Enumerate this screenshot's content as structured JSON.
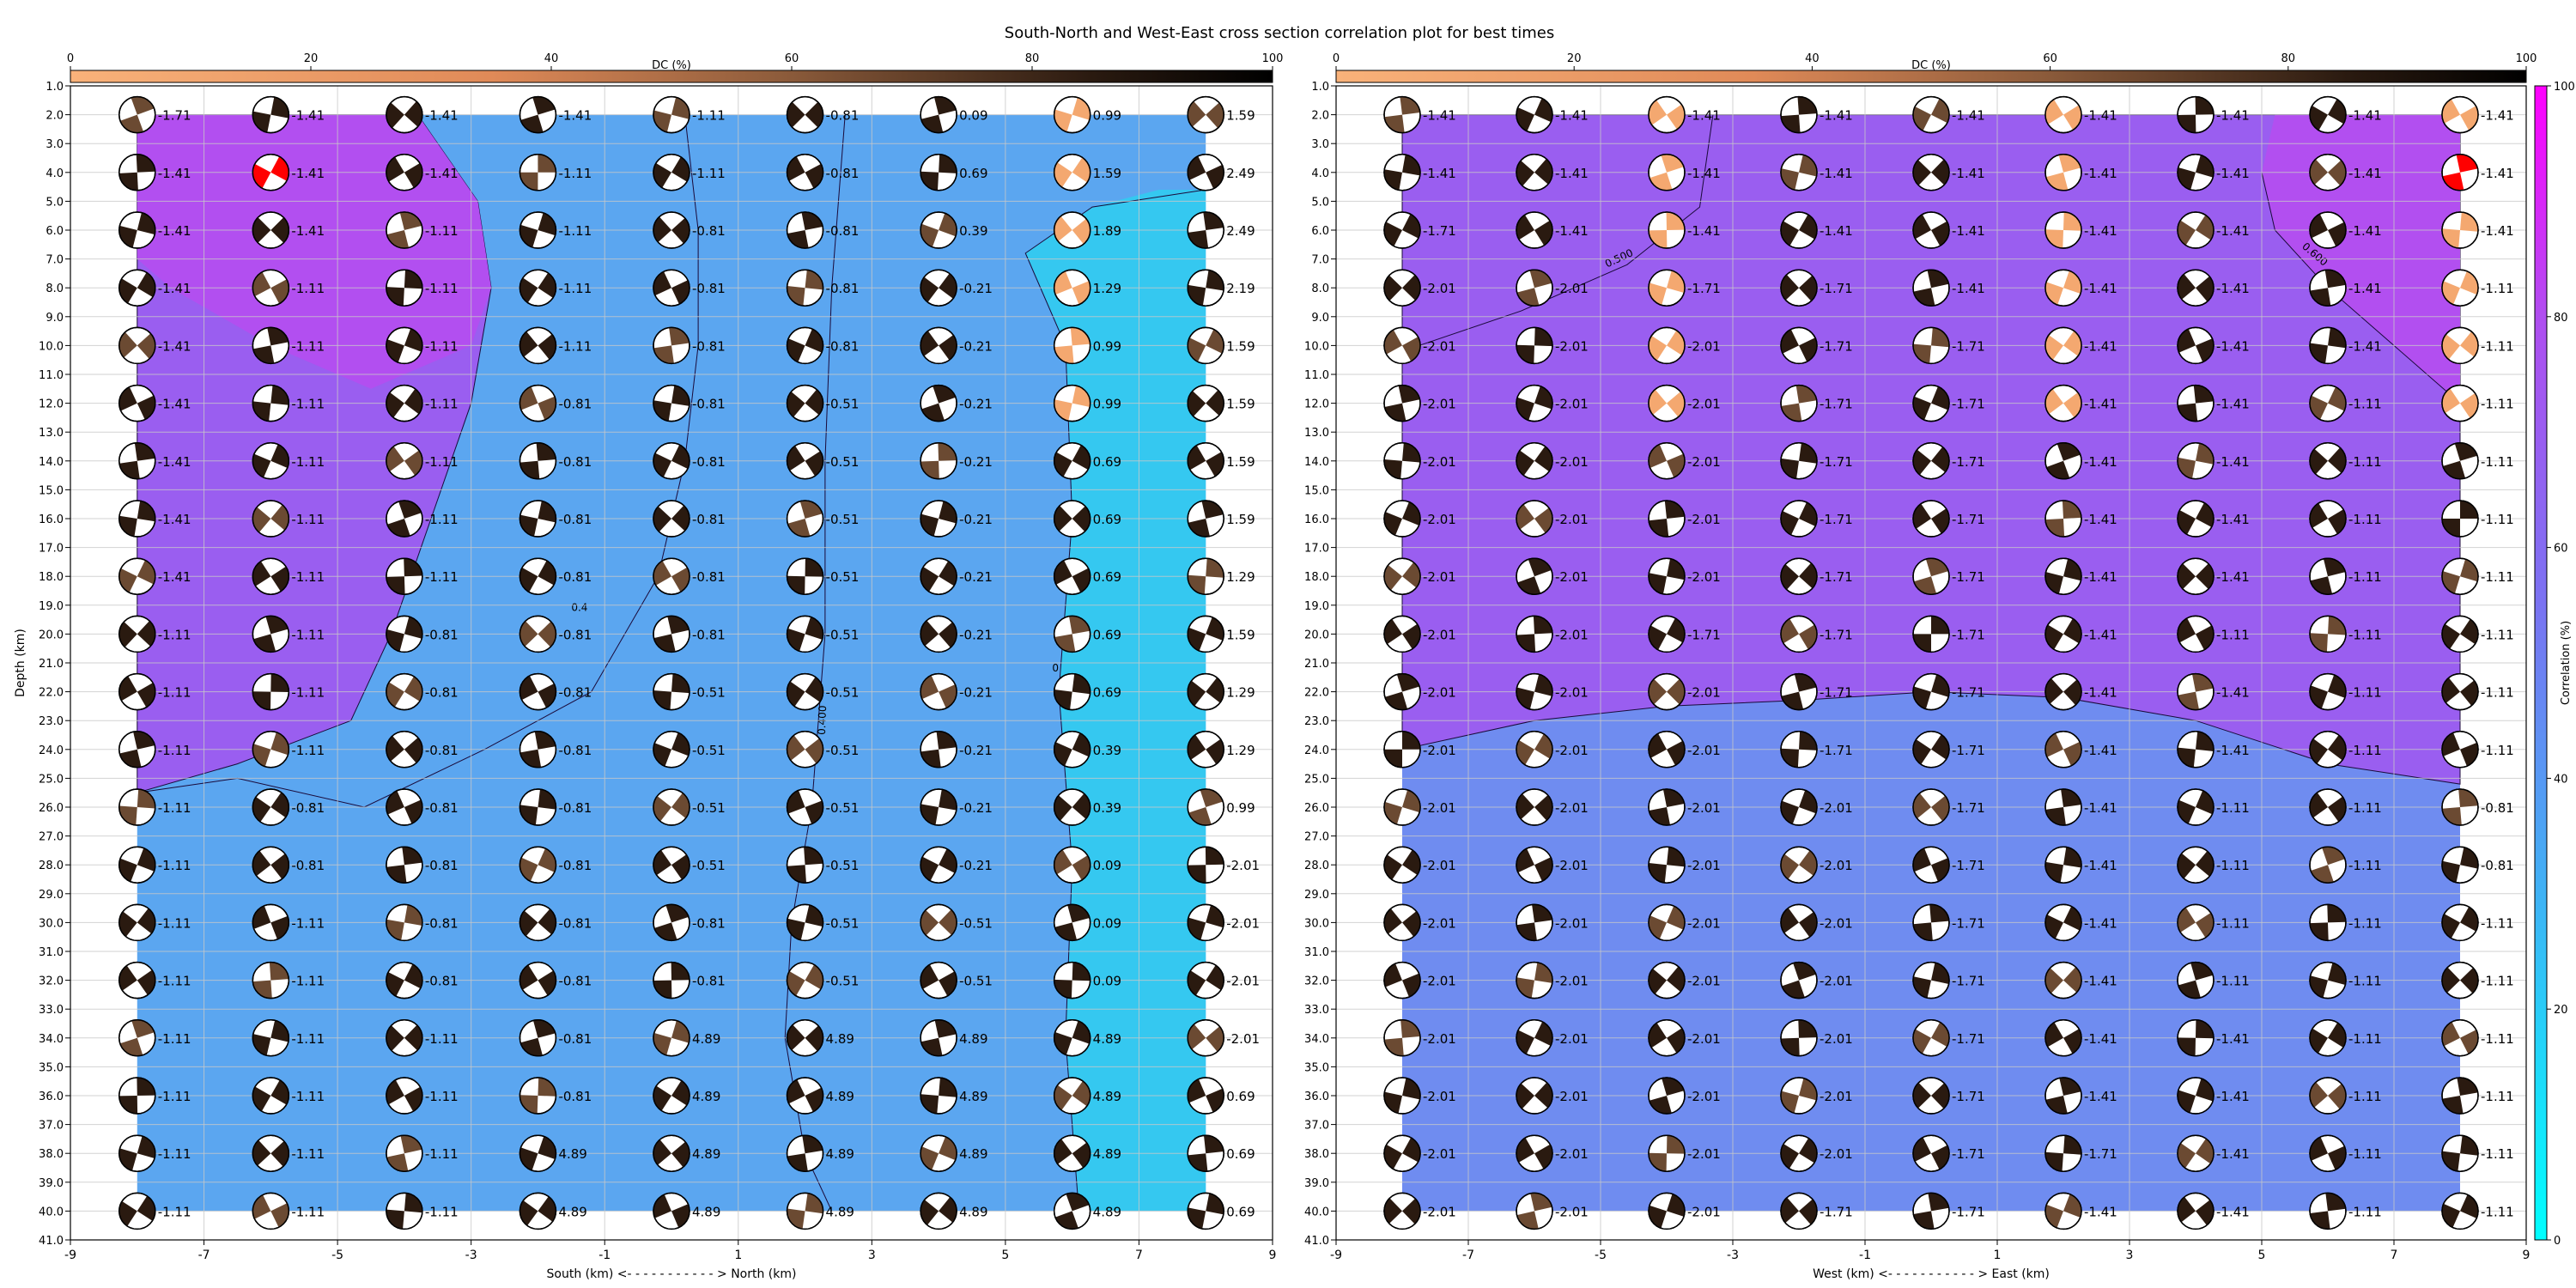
{
  "figure": {
    "title": "South-North and West-East cross section correlation plot for best times"
  },
  "colors": {
    "grid": "#c8c8c8",
    "region_low": "#35c8f0",
    "region_mid": "#5ba6f0",
    "region_mid2": "#6f8cf0",
    "region_high": "#9a5ef0",
    "region_top": "#b24ff0",
    "beach_dark": "#2a1a10",
    "beach_mid": "#6b4a32",
    "beach_light": "#f4a870",
    "beach_red": "#ff0000"
  },
  "chart_data": [
    {
      "type": "heatmap",
      "name": "south-north",
      "xlabel": "South (km) <- - - - - - - - - - - > North (km)",
      "ylabel": "Depth (km)",
      "xlim": [
        -9,
        9
      ],
      "ylim": [
        41,
        1
      ],
      "x_ticks": [
        "-9",
        "-7",
        "-5",
        "-3",
        "-1",
        "1",
        "3",
        "5",
        "7",
        "9"
      ],
      "y_ticks": [
        "1.0",
        "2.0",
        "3.0",
        "4.0",
        "5.0",
        "6.0",
        "7.0",
        "8.0",
        "9.0",
        "10.0",
        "11.0",
        "12.0",
        "13.0",
        "14.0",
        "15.0",
        "16.0",
        "17.0",
        "18.0",
        "19.0",
        "20.0",
        "21.0",
        "22.0",
        "23.0",
        "24.0",
        "25.0",
        "26.0",
        "27.0",
        "28.0",
        "29.0",
        "30.0",
        "31.0",
        "32.0",
        "33.0",
        "34.0",
        "35.0",
        "36.0",
        "37.0",
        "38.0",
        "39.0",
        "40.0",
        "41.0"
      ],
      "dc_colorbar": {
        "label": "DC (%)",
        "ticks": [
          "0",
          "20",
          "40",
          "60",
          "80",
          "100"
        ]
      },
      "contour_labels": [
        "0.4",
        "0.400",
        "0"
      ],
      "grid_x": [
        -8,
        -6,
        -4,
        -2,
        0,
        2,
        4,
        6,
        8
      ],
      "grid_depth": [
        2,
        4,
        6,
        8,
        10,
        12,
        14,
        16,
        18,
        20,
        22,
        24,
        26,
        28,
        30,
        32,
        34,
        36,
        38,
        40
      ],
      "time_labels": [
        [
          "-1.71",
          "-1.41",
          "-1.41",
          "-1.41",
          "-1.11",
          "-0.81",
          "0.09",
          "0.99",
          "1.59"
        ],
        [
          "-1.41",
          "-1.41",
          "-1.41",
          "-1.11",
          "-1.11",
          "-0.81",
          "0.69",
          "1.59",
          "2.49"
        ],
        [
          "-1.41",
          "-1.41",
          "-1.11",
          "-1.11",
          "-0.81",
          "-0.81",
          "0.39",
          "1.89",
          "2.49"
        ],
        [
          "-1.41",
          "-1.11",
          "-1.11",
          "-1.11",
          "-0.81",
          "-0.81",
          "-0.21",
          "1.29",
          "2.19"
        ],
        [
          "-1.41",
          "-1.11",
          "-1.11",
          "-1.11",
          "-0.81",
          "-0.81",
          "-0.21",
          "0.99",
          "1.59"
        ],
        [
          "-1.41",
          "-1.11",
          "-1.11",
          "-0.81",
          "-0.81",
          "-0.51",
          "-0.21",
          "0.99",
          "1.59"
        ],
        [
          "-1.41",
          "-1.11",
          "-1.11",
          "-0.81",
          "-0.81",
          "-0.51",
          "-0.21",
          "0.69",
          "1.59"
        ],
        [
          "-1.41",
          "-1.11",
          "-1.11",
          "-0.81",
          "-0.81",
          "-0.51",
          "-0.21",
          "0.69",
          "1.59"
        ],
        [
          "-1.41",
          "-1.11",
          "-1.11",
          "-0.81",
          "-0.81",
          "-0.51",
          "-0.21",
          "0.69",
          "1.29"
        ],
        [
          "-1.11",
          "-1.11",
          "-0.81",
          "-0.81",
          "-0.81",
          "-0.51",
          "-0.21",
          "0.69",
          "1.59"
        ],
        [
          "-1.11",
          "-1.11",
          "-0.81",
          "-0.81",
          "-0.51",
          "-0.51",
          "-0.21",
          "0.69",
          "1.29"
        ],
        [
          "-1.11",
          "-1.11",
          "-0.81",
          "-0.81",
          "-0.51",
          "-0.51",
          "-0.21",
          "0.39",
          "1.29"
        ],
        [
          "-1.11",
          "-0.81",
          "-0.81",
          "-0.81",
          "-0.51",
          "-0.51",
          "-0.21",
          "0.39",
          "0.99"
        ],
        [
          "-1.11",
          "-0.81",
          "-0.81",
          "-0.81",
          "-0.51",
          "-0.51",
          "-0.21",
          "0.09",
          "-2.01"
        ],
        [
          "-1.11",
          "-1.11",
          "-0.81",
          "-0.81",
          "-0.81",
          "-0.51",
          "-0.51",
          "0.09",
          "-2.01"
        ],
        [
          "-1.11",
          "-1.11",
          "-0.81",
          "-0.81",
          "-0.81",
          "-0.51",
          "-0.51",
          "0.09",
          "-2.01"
        ],
        [
          "-1.11",
          "-1.11",
          "-1.11",
          "-0.81",
          "4.89",
          "4.89",
          "4.89",
          "4.89",
          "-2.01"
        ],
        [
          "-1.11",
          "-1.11",
          "-1.11",
          "-0.81",
          "4.89",
          "4.89",
          "4.89",
          "4.89",
          "0.69"
        ],
        [
          "-1.11",
          "-1.11",
          "-1.11",
          "4.89",
          "4.89",
          "4.89",
          "4.89",
          "4.89",
          "0.69"
        ],
        [
          "-1.11",
          "-1.11",
          "-1.11",
          "4.89",
          "4.89",
          "4.89",
          "4.89",
          "4.89",
          "0.69"
        ]
      ]
    },
    {
      "type": "heatmap",
      "name": "west-east",
      "xlabel": "West (km) <- - - - - - - - - - - > East (km)",
      "ylabel": "",
      "xlim": [
        -9,
        9
      ],
      "ylim": [
        41,
        1
      ],
      "x_ticks": [
        "-9",
        "-7",
        "-5",
        "-3",
        "-1",
        "1",
        "3",
        "5",
        "7",
        "9"
      ],
      "y_ticks": [
        "1.0",
        "2.0",
        "3.0",
        "4.0",
        "5.0",
        "6.0",
        "7.0",
        "8.0",
        "9.0",
        "10.0",
        "11.0",
        "12.0",
        "13.0",
        "14.0",
        "15.0",
        "16.0",
        "17.0",
        "18.0",
        "19.0",
        "20.0",
        "21.0",
        "22.0",
        "23.0",
        "24.0",
        "25.0",
        "26.0",
        "27.0",
        "28.0",
        "29.0",
        "30.0",
        "31.0",
        "32.0",
        "33.0",
        "34.0",
        "35.0",
        "36.0",
        "37.0",
        "38.0",
        "39.0",
        "40.0",
        "41.0"
      ],
      "dc_colorbar": {
        "label": "DC (%)",
        "ticks": [
          "0",
          "20",
          "40",
          "60",
          "80",
          "100"
        ]
      },
      "corr_colorbar": {
        "label": "Correlation (%)",
        "ticks": [
          "0",
          "20",
          "40",
          "60",
          "80",
          "100"
        ]
      },
      "contour_labels": [
        "0.500",
        "0.600"
      ],
      "grid_x": [
        -8,
        -6,
        -4,
        -2,
        0,
        2,
        4,
        6,
        8
      ],
      "grid_depth": [
        2,
        4,
        6,
        8,
        10,
        12,
        14,
        16,
        18,
        20,
        22,
        24,
        26,
        28,
        30,
        32,
        34,
        36,
        38,
        40
      ],
      "time_labels": [
        [
          "-1.41",
          "-1.41",
          "-1.41",
          "-1.41",
          "-1.41",
          "-1.41",
          "-1.41",
          "-1.41",
          "-1.41"
        ],
        [
          "-1.41",
          "-1.41",
          "-1.41",
          "-1.41",
          "-1.41",
          "-1.41",
          "-1.41",
          "-1.41",
          "-1.41"
        ],
        [
          "-1.71",
          "-1.41",
          "-1.41",
          "-1.41",
          "-1.41",
          "-1.41",
          "-1.41",
          "-1.41",
          "-1.41"
        ],
        [
          "-2.01",
          "-2.01",
          "-1.71",
          "-1.71",
          "-1.41",
          "-1.41",
          "-1.41",
          "-1.41",
          "-1.11"
        ],
        [
          "-2.01",
          "-2.01",
          "-2.01",
          "-1.71",
          "-1.71",
          "-1.41",
          "-1.41",
          "-1.41",
          "-1.11"
        ],
        [
          "-2.01",
          "-2.01",
          "-2.01",
          "-1.71",
          "-1.71",
          "-1.41",
          "-1.41",
          "-1.11",
          "-1.11"
        ],
        [
          "-2.01",
          "-2.01",
          "-2.01",
          "-1.71",
          "-1.71",
          "-1.41",
          "-1.41",
          "-1.11",
          "-1.11"
        ],
        [
          "-2.01",
          "-2.01",
          "-2.01",
          "-1.71",
          "-1.71",
          "-1.41",
          "-1.41",
          "-1.11",
          "-1.11"
        ],
        [
          "-2.01",
          "-2.01",
          "-2.01",
          "-1.71",
          "-1.71",
          "-1.41",
          "-1.41",
          "-1.11",
          "-1.11"
        ],
        [
          "-2.01",
          "-2.01",
          "-1.71",
          "-1.71",
          "-1.71",
          "-1.41",
          "-1.11",
          "-1.11",
          "-1.11"
        ],
        [
          "-2.01",
          "-2.01",
          "-2.01",
          "-1.71",
          "-1.71",
          "-1.41",
          "-1.41",
          "-1.11",
          "-1.11"
        ],
        [
          "-2.01",
          "-2.01",
          "-2.01",
          "-1.71",
          "-1.71",
          "-1.41",
          "-1.41",
          "-1.11",
          "-1.11"
        ],
        [
          "-2.01",
          "-2.01",
          "-2.01",
          "-2.01",
          "-1.71",
          "-1.41",
          "-1.11",
          "-1.11",
          "-0.81"
        ],
        [
          "-2.01",
          "-2.01",
          "-2.01",
          "-2.01",
          "-1.71",
          "-1.41",
          "-1.11",
          "-1.11",
          "-0.81"
        ],
        [
          "-2.01",
          "-2.01",
          "-2.01",
          "-2.01",
          "-1.71",
          "-1.41",
          "-1.11",
          "-1.11",
          "-1.11"
        ],
        [
          "-2.01",
          "-2.01",
          "-2.01",
          "-2.01",
          "-1.71",
          "-1.41",
          "-1.11",
          "-1.11",
          "-1.11"
        ],
        [
          "-2.01",
          "-2.01",
          "-2.01",
          "-2.01",
          "-1.71",
          "-1.41",
          "-1.41",
          "-1.11",
          "-1.11"
        ],
        [
          "-2.01",
          "-2.01",
          "-2.01",
          "-2.01",
          "-1.71",
          "-1.41",
          "-1.41",
          "-1.11",
          "-1.11"
        ],
        [
          "-2.01",
          "-2.01",
          "-2.01",
          "-2.01",
          "-1.71",
          "-1.71",
          "-1.41",
          "-1.11",
          "-1.11"
        ],
        [
          "-2.01",
          "-2.01",
          "-2.01",
          "-1.71",
          "-1.71",
          "-1.41",
          "-1.41",
          "-1.11",
          "-1.11"
        ]
      ]
    }
  ]
}
